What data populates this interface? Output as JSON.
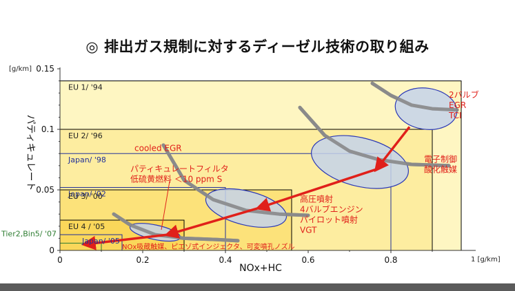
{
  "title": "◎ 排出ガス規制に対するディーゼル技術の取り組み",
  "chart_data": {
    "type": "diagram",
    "y_unit": "[g/km]",
    "x_unit": "1 [g/km]",
    "ylabel": "パティキュレート",
    "xlabel": "NOx+HC",
    "xlim": [
      0,
      1.0
    ],
    "ylim": [
      0,
      0.15
    ],
    "x_ticks": [
      {
        "value": 0,
        "label": "0"
      },
      {
        "value": 0.2,
        "label": "0.2"
      },
      {
        "value": 0.4,
        "label": "0.4"
      },
      {
        "value": 0.6,
        "label": "0.6"
      },
      {
        "value": 0.8,
        "label": "0.8"
      }
    ],
    "y_ticks": [
      {
        "value": 0,
        "label": "0"
      },
      {
        "value": 0.05,
        "label": "0.05"
      },
      {
        "value": 0.1,
        "label": "0.1"
      },
      {
        "value": 0.15,
        "label": "0.15"
      }
    ],
    "regulations": [
      {
        "label": "EU 1/ '94",
        "nox": 0.97,
        "pm": 0.14,
        "fill": "#fef6c2",
        "stroke": "#000000",
        "text_color": "#222222"
      },
      {
        "label": "EU 2/ '96",
        "nox": 0.9,
        "pm": 0.1,
        "fill": "#fdeda0",
        "stroke": "#000000",
        "text_color": "#222222"
      },
      {
        "label": "Japan/ '98",
        "nox": 0.8,
        "pm": 0.08,
        "fill": "none",
        "stroke": "#1f2f9a",
        "text_color": "#1f2f9a"
      },
      {
        "label": "Japan/ '02",
        "nox": 0.4,
        "pm": 0.052,
        "fill": "none",
        "stroke": "#1f2f9a",
        "text_color": "#1f2f9a"
      },
      {
        "label": "EU 3/ '00",
        "nox": 0.56,
        "pm": 0.05,
        "fill": "#fce27a",
        "stroke": "#000000",
        "text_color": "#222222"
      },
      {
        "label": "EU 4 / '05",
        "nox": 0.3,
        "pm": 0.025,
        "fill": "#fad75a",
        "stroke": "#000000",
        "text_color": "#222222"
      },
      {
        "label": "Japan/ '05",
        "nox": 0.15,
        "pm": 0.013,
        "fill": "none",
        "stroke": "#1f2f9a",
        "text_color": "#1f2f9a"
      },
      {
        "label": "Tier2,Bin5/ '07",
        "nox": 0.1,
        "pm": 0.006,
        "fill": "none",
        "stroke": "#2e7d32",
        "text_color": "#2e7d32"
      }
    ],
    "ellipses": [
      {
        "cx": 0.885,
        "cy": 0.117,
        "rx": 0.075,
        "ry": 0.017,
        "rot": 8
      },
      {
        "cx": 0.725,
        "cy": 0.073,
        "rx": 0.12,
        "ry": 0.02,
        "rot": 14
      },
      {
        "cx": 0.45,
        "cy": 0.035,
        "rx": 0.1,
        "ry": 0.014,
        "rot": 14
      },
      {
        "cx": 0.23,
        "cy": 0.015,
        "rx": 0.062,
        "ry": 0.006,
        "rot": 12
      }
    ],
    "curves": [
      [
        [
          0.755,
          0.138
        ],
        [
          0.8,
          0.128
        ],
        [
          0.85,
          0.12
        ],
        [
          0.9,
          0.117
        ],
        [
          0.96,
          0.116
        ]
      ],
      [
        [
          0.58,
          0.118
        ],
        [
          0.64,
          0.095
        ],
        [
          0.7,
          0.082
        ],
        [
          0.77,
          0.075
        ],
        [
          0.85,
          0.071
        ],
        [
          0.94,
          0.07
        ]
      ],
      [
        [
          0.25,
          0.087
        ],
        [
          0.3,
          0.058
        ],
        [
          0.37,
          0.042
        ],
        [
          0.45,
          0.033
        ],
        [
          0.53,
          0.03
        ],
        [
          0.6,
          0.029
        ]
      ],
      [
        [
          0.13,
          0.03
        ],
        [
          0.17,
          0.021
        ],
        [
          0.23,
          0.013
        ],
        [
          0.3,
          0.01
        ],
        [
          0.38,
          0.009
        ],
        [
          0.43,
          0.008
        ]
      ]
    ],
    "arrows": [
      {
        "from": [
          0.845,
          0.102
        ],
        "to": [
          0.765,
          0.067
        ]
      },
      {
        "from": [
          0.765,
          0.067
        ],
        "to": [
          0.48,
          0.035
        ]
      },
      {
        "from": [
          0.48,
          0.035
        ],
        "to": [
          0.26,
          0.013
        ]
      },
      {
        "from": [
          0.26,
          0.013
        ],
        "to": [
          0.06,
          0.005
        ]
      }
    ],
    "annotations": [
      {
        "lines": [
          "2バルブ",
          "EGR",
          "TCI"
        ],
        "x": 0.94,
        "y": 0.126
      },
      {
        "lines": [
          "電子制御",
          "酸化触媒"
        ],
        "x": 0.88,
        "y": 0.073
      },
      {
        "lines": [
          "cooled EGR"
        ],
        "x": 0.18,
        "y": 0.082
      },
      {
        "lines": [
          "パティキュレートフィルタ",
          "低硫黄燃料 ＜10 ppm S"
        ],
        "x": 0.17,
        "y": 0.065
      },
      {
        "lines": [
          "高圧噴射",
          "4バルブエンジン",
          "パイロット噴射",
          "VGT"
        ],
        "x": 0.58,
        "y": 0.04
      },
      {
        "lines": [
          "NOx吸蔵触媒、ピエゾ式インジェクタ、可変噴孔ノズル"
        ],
        "x": 0.15,
        "y": 0.001
      }
    ],
    "colors": {
      "curve": "#8a8a8a",
      "ellipse_fill": "#c4d2ea",
      "ellipse_stroke": "#2a37b5",
      "arrow": "#e0201a",
      "annotation": "#e0201a",
      "axis": "#333333"
    }
  }
}
